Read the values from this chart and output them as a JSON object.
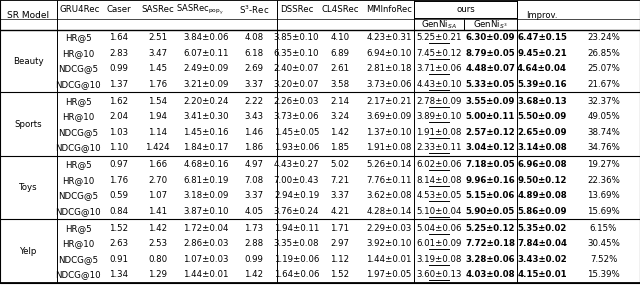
{
  "datasets": [
    "Beauty",
    "Sports",
    "Toys",
    "Yelp"
  ],
  "metrics": [
    "HR@5",
    "HR@10",
    "NDCG@5",
    "NDCG@10"
  ],
  "data": {
    "Beauty": {
      "HR@5": [
        "1.64",
        "2.51",
        "3.84±0.06",
        "4.08",
        "3.85±0.10",
        "4.10",
        "4.23±0.31",
        "5.25±0.21",
        "6.30±0.09",
        "6.47±0.15",
        "23.24%"
      ],
      "HR@10": [
        "2.83",
        "3.47",
        "6.07±0.11",
        "6.18",
        "6.35±0.10",
        "6.89",
        "6.94±0.10",
        "7.45±0.12",
        "8.79±0.05",
        "9.45±0.21",
        "26.85%"
      ],
      "NDCG@5": [
        "0.99",
        "1.45",
        "2.49±0.09",
        "2.69",
        "2.40±0.07",
        "2.61",
        "2.81±0.18",
        "3.71±0.06",
        "4.48±0.07",
        "4.64±0.04",
        "25.07%"
      ],
      "NDCG@10": [
        "1.37",
        "1.76",
        "3.21±0.09",
        "3.37",
        "3.20±0.07",
        "3.58",
        "3.73±0.06",
        "4.43±0.10",
        "5.33±0.05",
        "5.39±0.16",
        "21.67%"
      ]
    },
    "Sports": {
      "HR@5": [
        "1.62",
        "1.54",
        "2.20±0.24",
        "2.22",
        "2.26±0.03",
        "2.14",
        "2.17±0.21",
        "2.78±0.09",
        "3.55±0.09",
        "3.68±0.13",
        "32.37%"
      ],
      "HR@10": [
        "2.04",
        "1.94",
        "3.41±0.30",
        "3.43",
        "3.73±0.06",
        "3.24",
        "3.69±0.09",
        "3.89±0.10",
        "5.00±0.11",
        "5.50±0.09",
        "49.05%"
      ],
      "NDCG@5": [
        "1.03",
        "1.14",
        "1.45±0.16",
        "1.46",
        "1.45±0.05",
        "1.42",
        "1.37±0.10",
        "1.91±0.08",
        "2.57±0.12",
        "2.65±0.09",
        "38.74%"
      ],
      "NDCG@10": [
        "1.10",
        "1.424",
        "1.84±0.17",
        "1.86",
        "1.93±0.06",
        "1.85",
        "1.91±0.08",
        "2.33±0.11",
        "3.04±0.12",
        "3.14±0.08",
        "34.76%"
      ]
    },
    "Toys": {
      "HR@5": [
        "0.97",
        "1.66",
        "4.68±0.16",
        "4.97",
        "4.43±0.27",
        "5.02",
        "5.26±0.14",
        "6.02±0.06",
        "7.18±0.05",
        "6.96±0.08",
        "19.27%"
      ],
      "HR@10": [
        "1.76",
        "2.70",
        "6.81±0.19",
        "7.08",
        "7.00±0.43",
        "7.21",
        "7.76±0.11",
        "8.14±0.08",
        "9.96±0.16",
        "9.50±0.12",
        "22.36%"
      ],
      "NDCG@5": [
        "0.59",
        "1.07",
        "3.18±0.09",
        "3.37",
        "2.94±0.19",
        "3.37",
        "3.62±0.08",
        "4.53±0.05",
        "5.15±0.06",
        "4.89±0.08",
        "13.69%"
      ],
      "NDCG@10": [
        "0.84",
        "1.41",
        "3.87±0.10",
        "4.05",
        "3.76±0.24",
        "4.21",
        "4.28±0.14",
        "5.10±0.04",
        "5.90±0.05",
        "5.86±0.09",
        "15.69%"
      ]
    },
    "Yelp": {
      "HR@5": [
        "1.52",
        "1.42",
        "1.72±0.04",
        "1.73",
        "1.94±0.11",
        "1.71",
        "2.29±0.03",
        "5.04±0.06",
        "5.25±0.12",
        "5.35±0.02",
        "6.15%"
      ],
      "HR@10": [
        "2.63",
        "2.53",
        "2.86±0.03",
        "2.88",
        "3.35±0.08",
        "2.97",
        "3.92±0.10",
        "6.01±0.09",
        "7.72±0.18",
        "7.84±0.04",
        "30.45%"
      ],
      "NDCG@5": [
        "0.91",
        "0.80",
        "1.07±0.03",
        "0.99",
        "1.19±0.06",
        "1.12",
        "1.44±0.01",
        "3.19±0.08",
        "3.28±0.06",
        "3.43±0.02",
        "7.52%"
      ],
      "NDCG@10": [
        "1.34",
        "1.29",
        "1.44±0.01",
        "1.42",
        "1.64±0.06",
        "1.52",
        "1.97±0.05",
        "3.60±0.13",
        "4.03±0.08",
        "4.15±0.01",
        "15.39%"
      ]
    }
  },
  "underline_col": {
    "Beauty": {
      "HR@5": 8,
      "HR@10": 8,
      "NDCG@5": 8,
      "NDCG@10": 8
    },
    "Sports": {
      "HR@5": 8,
      "HR@10": 8,
      "NDCG@5": 8,
      "NDCG@10": 8
    },
    "Toys": {
      "HR@5": 8,
      "HR@10": 8,
      "NDCG@5": 8,
      "NDCG@10": 8
    },
    "Yelp": {
      "HR@5": 8,
      "HR@10": 8,
      "NDCG@5": 8,
      "NDCG@10": 8
    }
  },
  "bold_best_col": {
    "Beauty": {
      "HR@5": 9,
      "HR@10": 10,
      "NDCG@5": 10,
      "NDCG@10": 10
    },
    "Sports": {
      "HR@5": 10,
      "HR@10": 10,
      "NDCG@5": 10,
      "NDCG@10": 10
    },
    "Toys": {
      "HR@5": 9,
      "HR@10": 9,
      "NDCG@5": 9,
      "NDCG@10": 9
    },
    "Yelp": {
      "HR@5": 10,
      "HR@10": 10,
      "NDCG@5": 10,
      "NDCG@10": 10
    }
  }
}
